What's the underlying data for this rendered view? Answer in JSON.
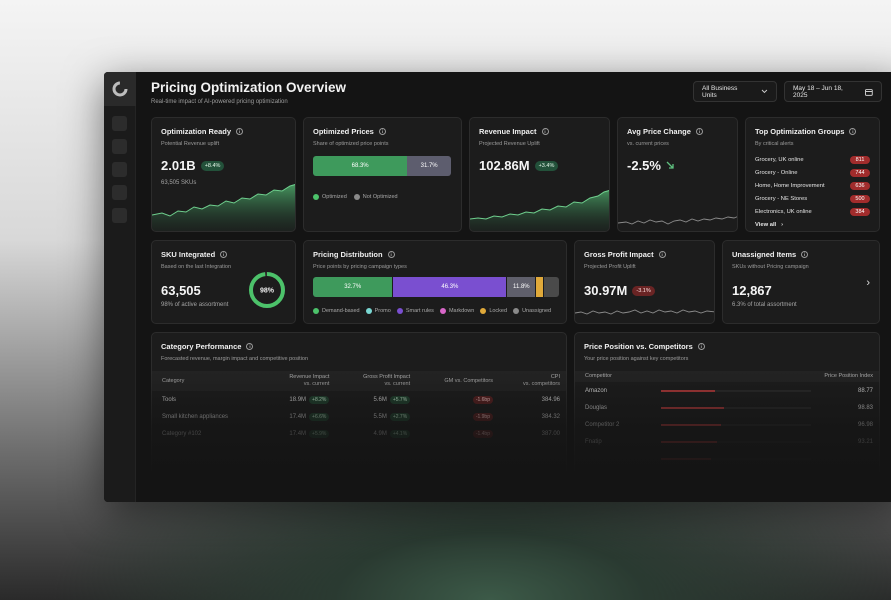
{
  "header": {
    "title": "Pricing Optimization Overview",
    "subtitle": "Real-time impact of AI-powered pricing optimization",
    "business_units": "All Business Units",
    "date_range": "May 18 – Jun 18, 2025"
  },
  "cards": {
    "optimization_ready": {
      "title": "Optimization Ready",
      "subtitle": "Potential Revenue uplift",
      "value": "2.01B",
      "badge": "+8.4%",
      "note": "63,505 SKUs"
    },
    "optimized_prices": {
      "title": "Optimized Prices",
      "subtitle": "Share of optimized price points",
      "optimized_pct": "68.3%",
      "not_optimized_pct": "31.7%",
      "optimized_fraction": 0.683,
      "legend_optimized": "Optimized",
      "legend_not_optimized": "Not Optimized"
    },
    "revenue_impact": {
      "title": "Revenue Impact",
      "subtitle": "Projected Revenue Uplift",
      "value": "102.86M",
      "badge": "+3.4%"
    },
    "avg_price_change": {
      "title": "Avg Price Change",
      "subtitle": "vs. current prices",
      "value": "-2.5%"
    },
    "top_groups": {
      "title": "Top Optimization Groups",
      "subtitle": "By critical alerts",
      "items": [
        {
          "name": "Grocery, UK online",
          "count": "811"
        },
        {
          "name": "Grocery - Online",
          "count": "744"
        },
        {
          "name": "Home, Home Improvement",
          "count": "636"
        },
        {
          "name": "Grocery - NE Stores",
          "count": "500"
        },
        {
          "name": "Electronics, UK online",
          "count": "384"
        }
      ],
      "view_all": "View all"
    },
    "sku_integrated": {
      "title": "SKU Integrated",
      "subtitle": "Based on the last Integration",
      "value": "63,505",
      "note": "98% of active assortment",
      "ring_label": "98%",
      "ring_fraction": 0.98
    },
    "pricing_distribution": {
      "title": "Pricing Distribution",
      "subtitle": "Price points by pricing campaign types",
      "segments": [
        {
          "label": "32.7%",
          "value": 32.7,
          "color": "#3e9a5c"
        },
        {
          "label": "46.3%",
          "value": 46.3,
          "color": "#7a4fd0"
        },
        {
          "label": "11.8%",
          "value": 11.8,
          "color": "#5f5f6b"
        },
        {
          "label": "",
          "value": 3.2,
          "color": "#e0a93a"
        },
        {
          "label": "",
          "value": 6.0,
          "color": "#4a4a4a"
        }
      ],
      "legend": [
        {
          "label": "Demand-based",
          "color": "#4cc26a"
        },
        {
          "label": "Promo",
          "color": "#7ad7d2"
        },
        {
          "label": "Smart rules",
          "color": "#7a4fd0"
        },
        {
          "label": "Markdown",
          "color": "#d866c8"
        },
        {
          "label": "Locked",
          "color": "#e0a93a"
        },
        {
          "label": "Unassigned",
          "color": "#8a8a8a"
        }
      ]
    },
    "gross_profit": {
      "title": "Gross Profit Impact",
      "subtitle": "Projected Profit Uplift",
      "value": "30.97M",
      "badge": "-3.1%"
    },
    "unassigned": {
      "title": "Unassigned Items",
      "subtitle": "SKUs without Pricing campaign",
      "value": "12,867",
      "note": "6.3% of total assortment"
    }
  },
  "category_performance": {
    "title": "Category Performance",
    "subtitle": "Forecasted revenue, margin impact and competitive position",
    "columns": {
      "category": "Category",
      "revenue_a": "Revenue Impact",
      "revenue_b": "vs. current",
      "gp_a": "Gross Profit Impact",
      "gp_b": "vs. current",
      "gm": "GM vs. Competitors",
      "cpi_a": "CPI",
      "cpi_b": "vs. competitors"
    },
    "rows": [
      {
        "category": "Tools",
        "revenue": "18.9M",
        "rev_badge": "+8.2%",
        "gp": "5.6M",
        "gp_badge": "+5.7%",
        "gm": "-1.6bp",
        "cpi": "384.96"
      },
      {
        "category": "Small kitchen appliances",
        "revenue": "17.4M",
        "rev_badge": "+6.6%",
        "gp": "5.5M",
        "gp_badge": "+2.7%",
        "gm": "-1.9bp",
        "cpi": "384.32"
      },
      {
        "category": "Category #102",
        "revenue": "17.4M",
        "rev_badge": "+5.9%",
        "gp": "4.9M",
        "gp_badge": "+4.1%",
        "gm": "-1.4bp",
        "cpi": "387.00"
      },
      {
        "category": "",
        "revenue": "",
        "rev_badge": "",
        "gp": "",
        "gp_badge": "",
        "gm": "",
        "cpi": ""
      }
    ]
  },
  "price_position": {
    "title": "Price Position vs. Competitors",
    "subtitle": "Your price position against key competitors",
    "col_competitor": "Competitor",
    "col_index": "Price Position Index",
    "rows": [
      {
        "name": "Amazon",
        "index": "88.77",
        "fraction": 0.36
      },
      {
        "name": "Douglas",
        "index": "98.83",
        "fraction": 0.42
      },
      {
        "name": "Competitor 2",
        "index": "96.98",
        "fraction": 0.4
      },
      {
        "name": "Fnatip",
        "index": "93.21",
        "fraction": 0.37
      },
      {
        "name": "",
        "index": "",
        "fraction": 0.33
      }
    ]
  }
}
